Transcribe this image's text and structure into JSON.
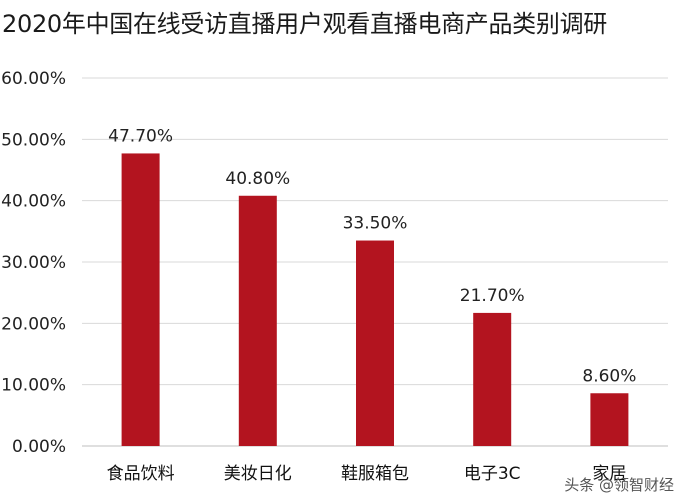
{
  "chart_data": {
    "type": "bar",
    "title": "2020年中国在线受访直播用户观看直播电商产品类别调研",
    "categories": [
      "食品饮料",
      "美妆日化",
      "鞋服箱包",
      "电子3C",
      "家居"
    ],
    "values": [
      47.7,
      40.8,
      33.5,
      21.7,
      8.6
    ],
    "data_labels": [
      "47.70%",
      "40.80%",
      "33.50%",
      "21.70%",
      "8.60%"
    ],
    "ylim": [
      0,
      60
    ],
    "yticks": [
      0,
      10,
      20,
      30,
      40,
      50,
      60
    ],
    "ytick_labels": [
      "0.00%",
      "10.00%",
      "20.00%",
      "30.00%",
      "40.00%",
      "50.00%",
      "60.00%"
    ],
    "grid": true,
    "bar_color": "#b3141f",
    "xlabel": "",
    "ylabel": ""
  },
  "watermark": {
    "text": "头条 @领智财经"
  }
}
